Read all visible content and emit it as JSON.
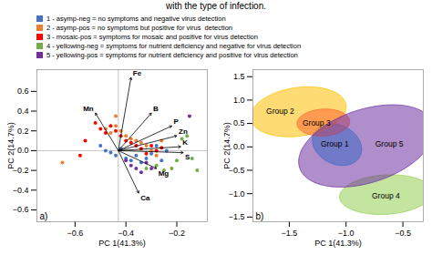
{
  "title": "with the type of infection.",
  "chart_data": [
    {
      "type": "scatter",
      "x_label": "PC 1(41.3%)",
      "y_label": "PC 2(14.7%)",
      "annotations": [
        "a)"
      ],
      "xlim": [
        -0.75,
        -0.08
      ],
      "ylim": [
        -0.72,
        0.82
      ],
      "xticks": [
        -0.6,
        -0.4,
        -0.2
      ],
      "yticks": [
        -0.6,
        -0.4,
        -0.2,
        {
          "value": 0.0,
          "label": "0.0"
        },
        0.2,
        0.4,
        0.6
      ],
      "legend": "top",
      "series": [
        {
          "name": "1 - asymp-neg = no symptoms and negative virus detection",
          "color": "#4472C4",
          "x": [
            -0.5,
            -0.48,
            -0.46,
            -0.44,
            -0.42,
            -0.4,
            -0.38,
            -0.36,
            -0.34,
            -0.32,
            -0.3,
            -0.28,
            -0.26,
            -0.24
          ],
          "y": [
            0.05,
            0.0,
            -0.02,
            -0.05,
            0.02,
            -0.08,
            -0.1,
            -0.05,
            -0.12,
            -0.08,
            -0.03,
            0.05,
            -0.1,
            0.0
          ]
        },
        {
          "name": "2 - asymp-pos = no symptoms but positive for virus  detection",
          "color": "#ED7D31",
          "x": [
            -0.48,
            -0.46,
            -0.44,
            -0.42,
            -0.4,
            -0.38,
            -0.36,
            -0.34,
            -0.32,
            -0.3,
            -0.28,
            -0.26,
            -0.65,
            -0.44
          ],
          "y": [
            0.22,
            0.18,
            0.25,
            0.2,
            0.15,
            0.12,
            0.1,
            0.08,
            0.05,
            0.0,
            -0.05,
            0.1,
            -0.12,
            0.35
          ]
        },
        {
          "name": "3 - mosaic-pos = symptoms for mosaic and positive for virus detection",
          "color": "#FF0000",
          "x": [
            -0.52,
            -0.5,
            -0.48,
            -0.46,
            -0.44,
            -0.42,
            -0.4,
            -0.38,
            -0.36,
            -0.34,
            -0.32,
            -0.3,
            -0.28,
            -0.26,
            -0.56,
            -0.58
          ],
          "y": [
            0.28,
            0.22,
            0.18,
            0.25,
            0.2,
            0.15,
            0.1,
            0.08,
            0.05,
            0.02,
            -0.03,
            0.05,
            0.0,
            0.03,
            0.1,
            -0.05
          ]
        },
        {
          "name": "4 - yellowing-neg = symptoms for nutrient deficiency and negative for virus detection",
          "color": "#70AD47",
          "x": [
            -0.32,
            -0.28,
            -0.25,
            -0.22,
            -0.2,
            -0.18,
            -0.16,
            -0.14,
            -0.12
          ],
          "y": [
            -0.18,
            -0.15,
            -0.2,
            -0.18,
            -0.1,
            0.12,
            0.15,
            -0.08,
            -0.2
          ]
        },
        {
          "name": "5 - yellowing-pos = symptoms for nutrient deficiency and positive for virus detection",
          "color": "#7030A0",
          "x": [
            -0.4,
            -0.38,
            -0.36,
            -0.34,
            -0.32,
            -0.3,
            -0.15
          ],
          "y": [
            -0.1,
            -0.15,
            -0.18,
            -0.22,
            -0.12,
            -0.18,
            0.35
          ]
        }
      ],
      "origin": {
        "x": -0.43,
        "y": 0.0
      },
      "arrows": [
        {
          "label": "Fe",
          "x": -0.38,
          "y": 0.74
        },
        {
          "label": "Mn",
          "x": -0.52,
          "y": 0.38
        },
        {
          "label": "B",
          "x": -0.3,
          "y": 0.38
        },
        {
          "label": "P",
          "x": -0.22,
          "y": 0.25
        },
        {
          "label": "Zn",
          "x": -0.2,
          "y": 0.15
        },
        {
          "label": "K",
          "x": -0.185,
          "y": 0.04
        },
        {
          "label": "S",
          "x": -0.175,
          "y": -0.02
        },
        {
          "label": "Mg",
          "x": -0.28,
          "y": -0.18
        },
        {
          "label": "Ca",
          "x": -0.35,
          "y": -0.43
        }
      ]
    },
    {
      "type": "ellipse",
      "x_label": "PC 1(41.3%)",
      "y_label": "PC 2(14.7%)",
      "annotations": [
        "b)"
      ],
      "xlim": [
        -1.82,
        -0.32
      ],
      "ylim": [
        -1.6,
        1.65
      ],
      "xticks": [
        -1.5,
        {
          "value": -1.0,
          "label": "−1.0"
        },
        -0.5
      ],
      "yticks": [
        -1.5,
        {
          "value": -1.0,
          "label": "−1.0"
        },
        -0.5,
        {
          "value": 0.0,
          "label": "0.0"
        },
        0.5,
        {
          "value": 1.0,
          "label": "1.0"
        },
        1.5
      ],
      "groups": [
        {
          "name": "Group 1",
          "x": -1.08,
          "y": 0.05,
          "width": 0.42,
          "height": 0.9,
          "angle": 8,
          "color": "#00B0F0",
          "label_x": -1.1,
          "label_y": 0.05
        },
        {
          "name": "Group 2",
          "x": -1.42,
          "y": 0.75,
          "width": 0.8,
          "height": 1.1,
          "angle": -20,
          "color": "#FFC000",
          "label_x": -1.58,
          "label_y": 0.75
        },
        {
          "name": "Group 3",
          "x": -1.2,
          "y": 0.52,
          "width": 0.46,
          "height": 0.58,
          "angle": -10,
          "color": "#FF6633",
          "label_x": -1.26,
          "label_y": 0.5
        },
        {
          "name": "Group 4",
          "x": -0.65,
          "y": -1.02,
          "width": 0.78,
          "height": 0.88,
          "angle": -35,
          "color": "#92D050",
          "label_x": -0.65,
          "label_y": -1.05
        },
        {
          "name": "Group 5",
          "x": -0.82,
          "y": 0.02,
          "width": 1.05,
          "height": 1.85,
          "angle": -22,
          "color": "#7030A0",
          "label_x": -0.62,
          "label_y": 0.05
        }
      ]
    }
  ]
}
